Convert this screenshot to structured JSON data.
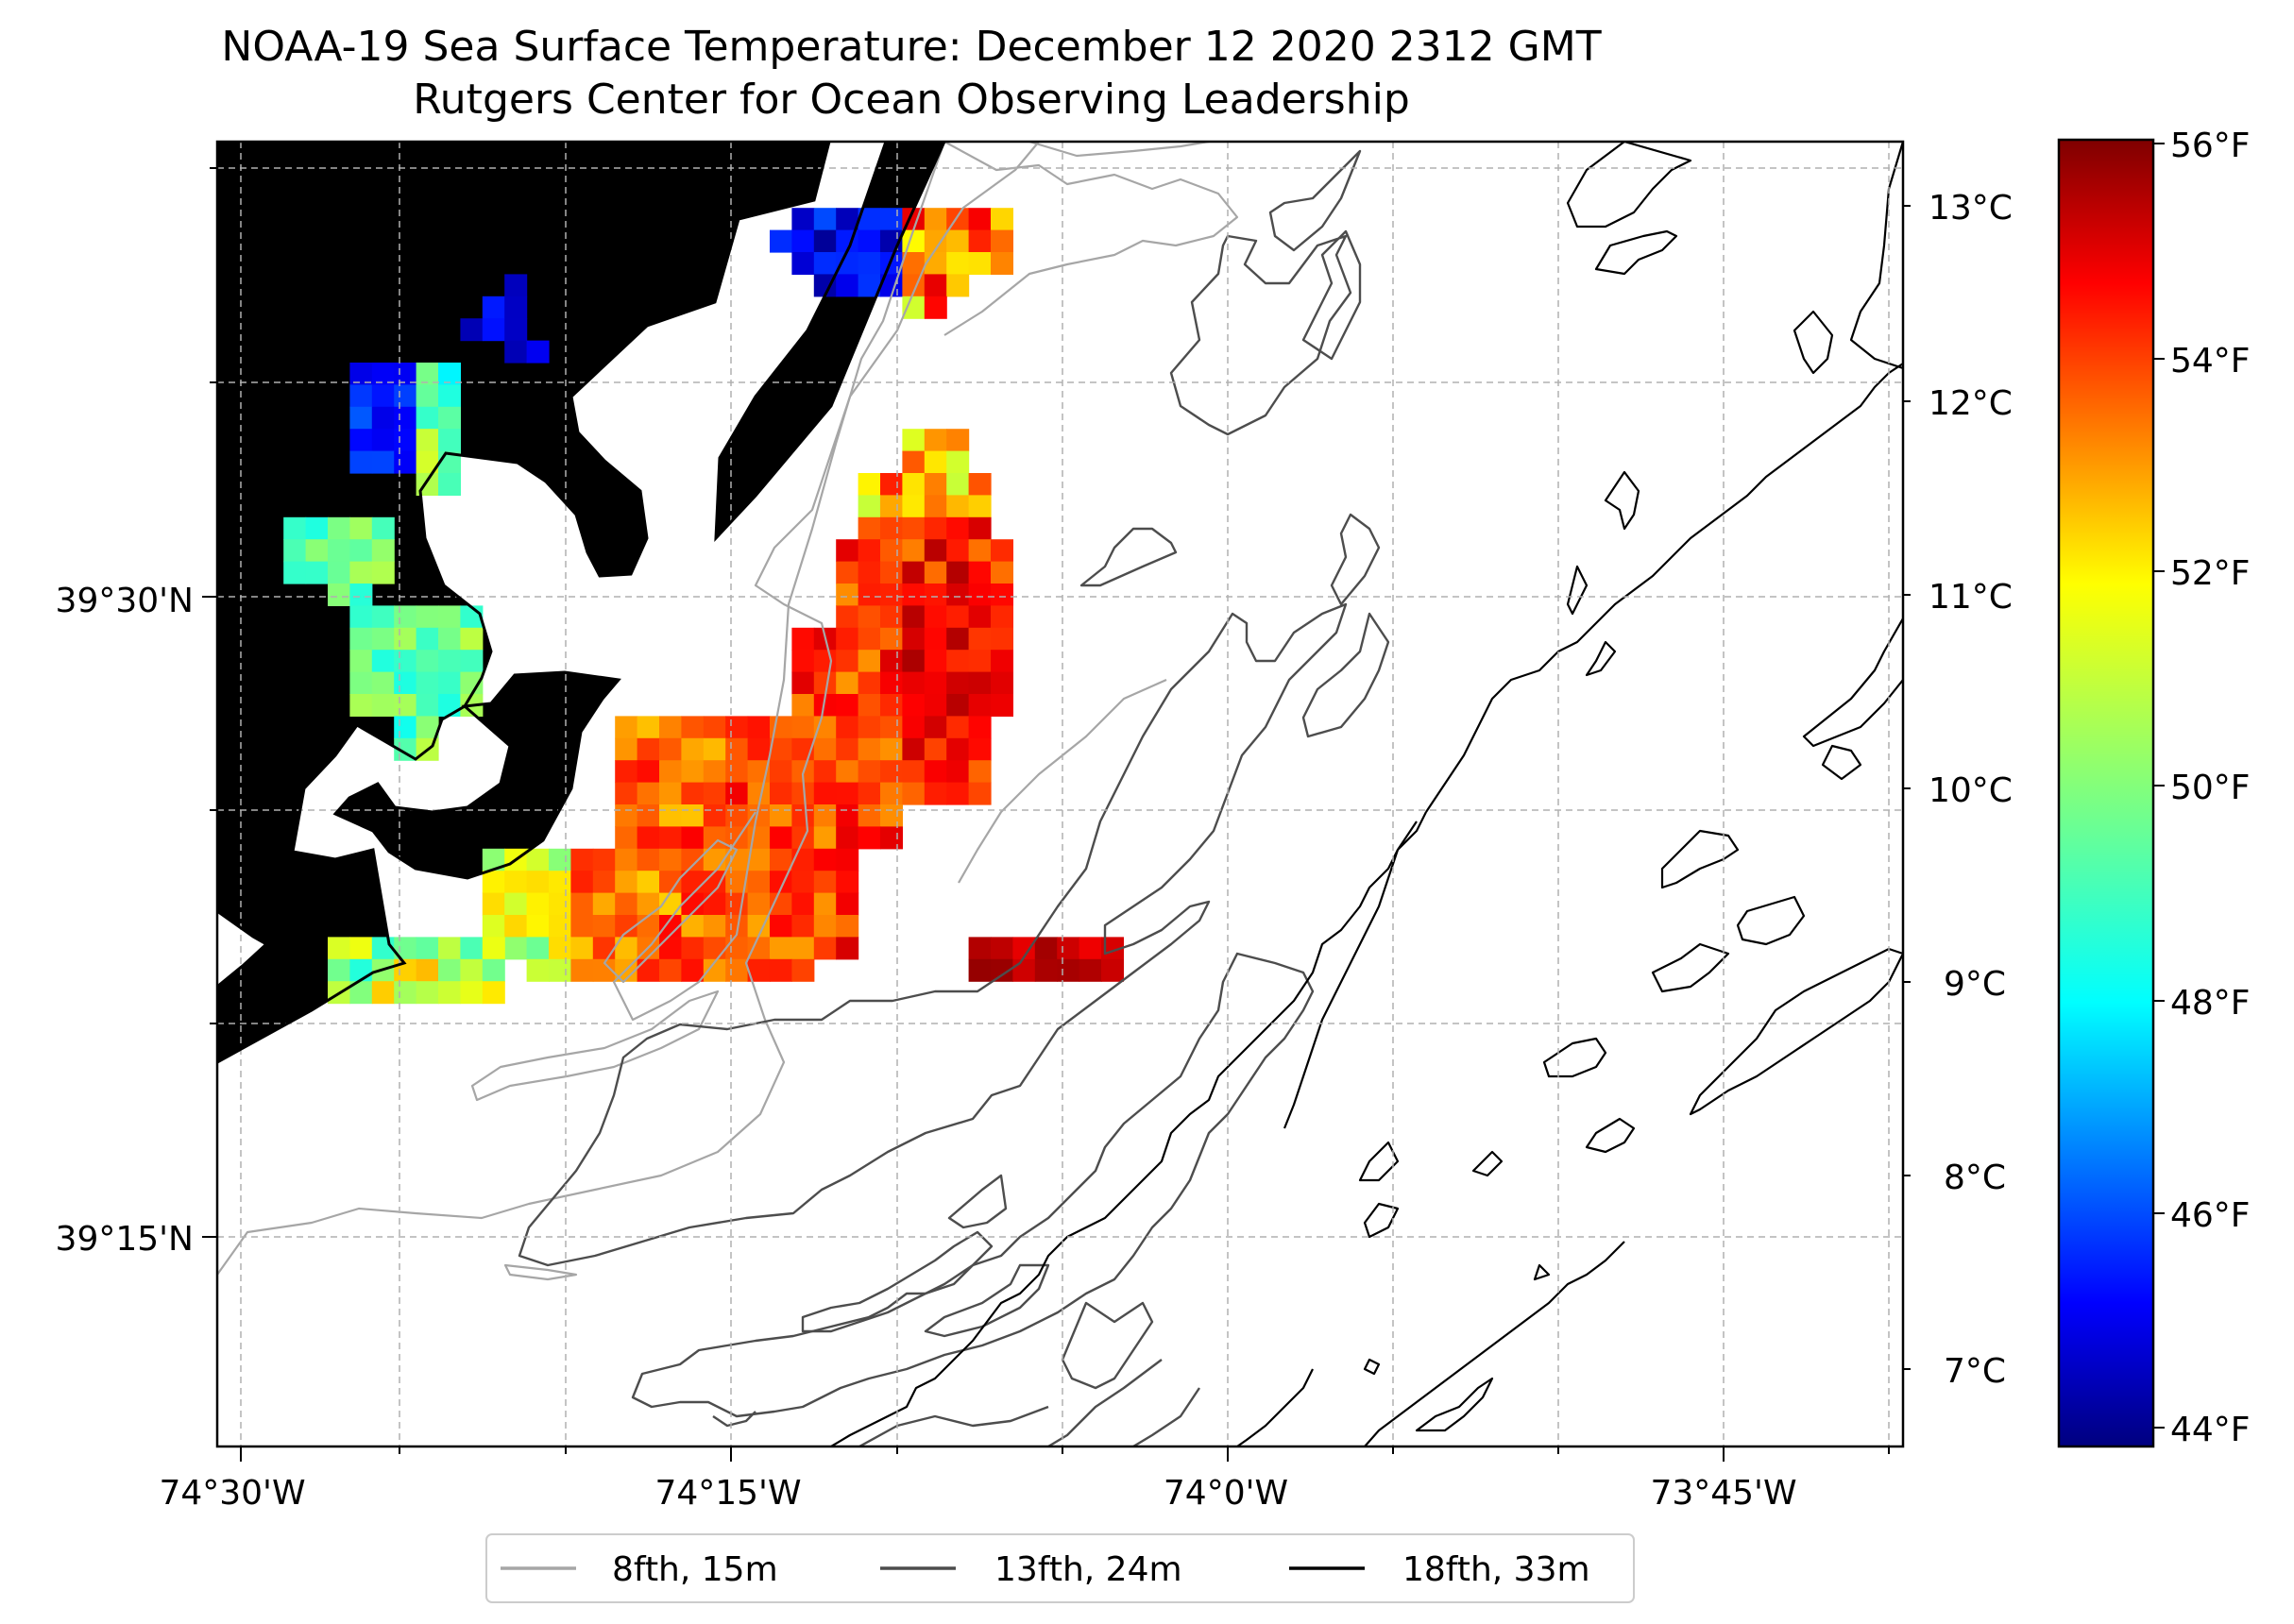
{
  "title": "NOAA-19 Sea Surface Temperature: December 12 2020 2312 GMT",
  "subtitle": "Rutgers Center for Ocean Observing Leadership",
  "axes": {
    "x_ticks": [
      "74°30'W",
      "74°15'W",
      "74°0'W",
      "73°45'W"
    ],
    "y_ticks": [
      "39°30'N",
      "39°15'N"
    ]
  },
  "colorbar": {
    "colormap": "jet",
    "celsius_ticks": [
      "13°C",
      "12°C",
      "11°C",
      "10°C",
      "9°C",
      "8°C",
      "7°C"
    ],
    "fahrenheit_ticks": [
      "56°F",
      "54°F",
      "52°F",
      "50°F",
      "48°F",
      "46°F",
      "44°F"
    ]
  },
  "legend": {
    "placement": "bottom-center",
    "items": [
      {
        "label": "8fth, 15m",
        "color": "#a6a6a6"
      },
      {
        "label": "13fth, 24m",
        "color": "#4d4d4d"
      },
      {
        "label": "18fth, 33m",
        "color": "#000000"
      }
    ]
  },
  "colors": {
    "land": "#d2b48c",
    "coastline": "#000000",
    "grid": "#b0b0b0"
  }
}
